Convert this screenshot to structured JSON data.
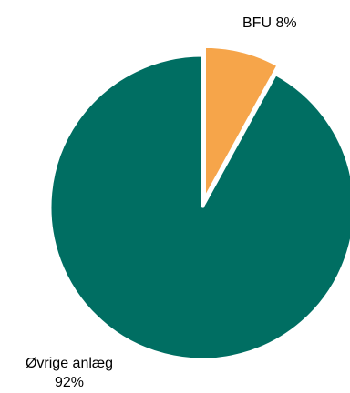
{
  "chart_data": {
    "type": "pie",
    "slices": [
      {
        "label": "BFU",
        "value": 8,
        "percent_label": "8%",
        "color": "#F6A54A",
        "exploded": true
      },
      {
        "label": "Øvrige anlæg",
        "value": 92,
        "percent_label": "92%",
        "color": "#006E62",
        "exploded": false
      }
    ],
    "labels": {
      "bfu": "BFU 8%",
      "ovrige_line1": "Øvrige anlæg",
      "ovrige_line2": "92%"
    },
    "legend": "none"
  }
}
